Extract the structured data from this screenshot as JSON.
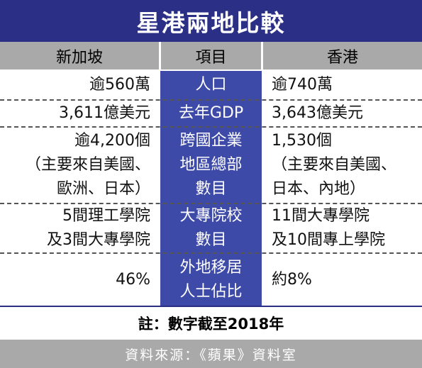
{
  "title": "星港兩地比較",
  "header": {
    "left": "新加坡",
    "middle": "項目",
    "right": "香港"
  },
  "rows": [
    {
      "singapore": "逾560萬",
      "item": "人口",
      "hongkong": "逾740萬"
    },
    {
      "singapore": "3,611億美元",
      "item": "去年GDP",
      "hongkong": "3,643億美元"
    },
    {
      "singapore": "逾4,200個\n（主要來自美國、\n歐洲、日本）",
      "item": "跨國企業\n地區總部\n數目",
      "hongkong": "1,530個\n（主要來自美國、\n日本、內地）"
    },
    {
      "singapore": "5間理工學院\n及3間大專學院",
      "item": "大專院校\n數目",
      "hongkong": "11間大專學院\n及10間專上學院"
    },
    {
      "singapore": "46%",
      "item": "外地移居\n人士佔比",
      "hongkong": "約8%"
    }
  ],
  "note": "註：數字截至2018年",
  "source": "資料來源：《蘋果》資料室",
  "colors": {
    "title_bg": "#2b2f86",
    "mid_column": "#3e4aa8",
    "header_bg": "#a9a9a9"
  }
}
